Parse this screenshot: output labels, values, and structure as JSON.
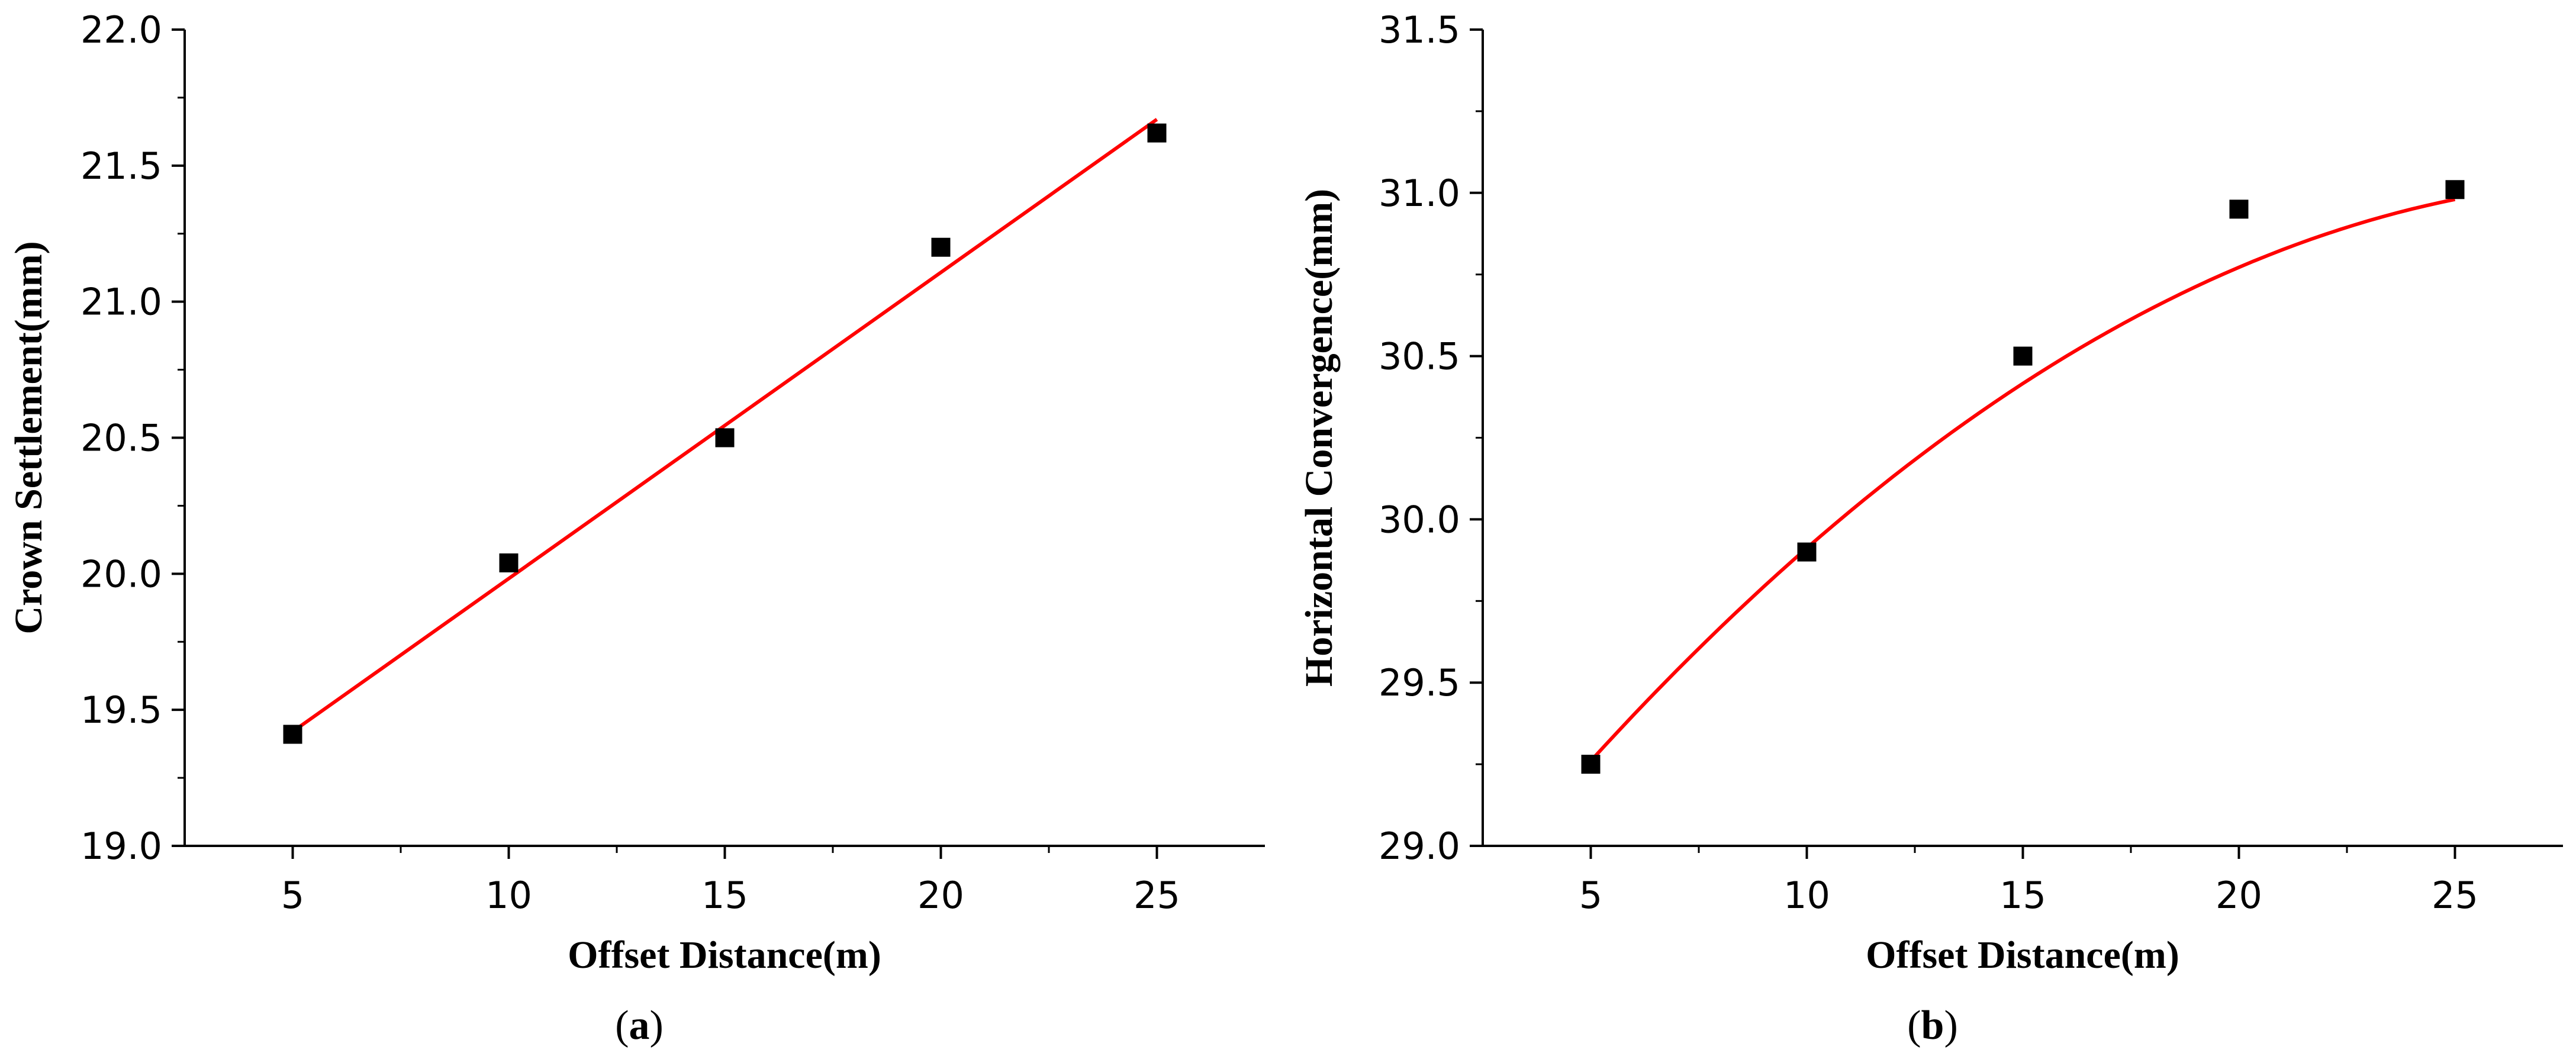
{
  "colors": {
    "axis": "#000000",
    "marker": "#000000",
    "fit_line": "#ff0000",
    "background": "#ffffff"
  },
  "chart_data": [
    {
      "type": "scatter",
      "panel_label": "a",
      "xlabel": "Offset Distance(m)",
      "ylabel": "Crown Settlement(mm)",
      "xlim": [
        2.5,
        27.5
      ],
      "ylim": [
        19.0,
        22.0
      ],
      "xticks": [
        5,
        10,
        15,
        20,
        25
      ],
      "yticks": [
        "19.0",
        "19.5",
        "20.0",
        "20.5",
        "21.0",
        "21.5",
        "22.0"
      ],
      "series": [
        {
          "marker": "square",
          "x": [
            5,
            10,
            15,
            20,
            25
          ],
          "y": [
            19.41,
            20.04,
            20.5,
            21.2,
            21.62
          ]
        }
      ],
      "fit": {
        "kind": "linear",
        "x_range": [
          5,
          25
        ],
        "y_at_start": 19.42,
        "y_at_end": 21.67
      }
    },
    {
      "type": "scatter",
      "panel_label": "b",
      "xlabel": "Offset Distance(m)",
      "ylabel": "Horizontal Convergence(mm)",
      "xlim": [
        2.5,
        27.5
      ],
      "ylim": [
        29.0,
        31.5
      ],
      "xticks": [
        5,
        10,
        15,
        20,
        25
      ],
      "yticks": [
        "29.0",
        "29.5",
        "30.0",
        "30.5",
        "31.0",
        "31.5"
      ],
      "series": [
        {
          "marker": "square",
          "x": [
            5,
            10,
            15,
            20,
            25
          ],
          "y": [
            29.25,
            29.9,
            30.5,
            30.95,
            31.01
          ]
        }
      ],
      "fit": {
        "kind": "quadratic",
        "x_range": [
          5,
          25
        ],
        "coefficients": [
          28.46,
          0.1748,
          -0.00296
        ]
      }
    }
  ]
}
